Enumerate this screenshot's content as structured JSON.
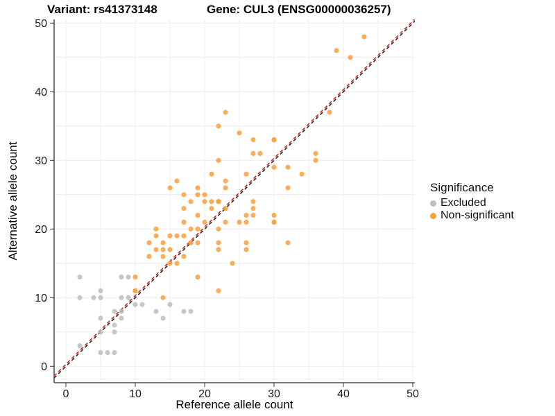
{
  "titles": {
    "variant": "Variant: rs41373148",
    "gene": "Gene: CUL3 (ENSG00000036257)"
  },
  "legend": {
    "title": "Significance",
    "items": [
      {
        "label": "Excluded",
        "color": "#BDBDBD"
      },
      {
        "label": "Non-significant",
        "color": "#F9A03F"
      }
    ]
  },
  "chart_data": {
    "type": "scatter",
    "xlabel": "Reference allele count",
    "ylabel": "Alternative allele count",
    "xlim": [
      -2,
      51
    ],
    "ylim": [
      -2.5,
      51
    ],
    "x_ticks": [
      0,
      10,
      20,
      30,
      40,
      50
    ],
    "y_ticks": [
      0,
      10,
      20,
      30,
      40,
      50
    ],
    "grid_step": 5,
    "grid": true,
    "legend_position": "right",
    "reference_lines": [
      {
        "name": "identity",
        "equation": "y = x",
        "color": "#262626",
        "style": "dashed"
      },
      {
        "name": "expected",
        "equation": "y = x + 0.3",
        "color": "#DC2323",
        "style": "dashed"
      }
    ],
    "series": [
      {
        "name": "Excluded",
        "color": "#BDBDBD",
        "points": [
          [
            2,
            13
          ],
          [
            8,
            13
          ],
          [
            9,
            13
          ],
          [
            5,
            11
          ],
          [
            2,
            10
          ],
          [
            4,
            10
          ],
          [
            5,
            10
          ],
          [
            8,
            10
          ],
          [
            9,
            10
          ],
          [
            10,
            9
          ],
          [
            11,
            9
          ],
          [
            15,
            9
          ],
          [
            7,
            8
          ],
          [
            8,
            8
          ],
          [
            13,
            8
          ],
          [
            17,
            8
          ],
          [
            18,
            8
          ],
          [
            5,
            7
          ],
          [
            8,
            7
          ],
          [
            14,
            7
          ],
          [
            7,
            6
          ],
          [
            5,
            5
          ],
          [
            7,
            5
          ],
          [
            2,
            3
          ],
          [
            5,
            2
          ],
          [
            6,
            2
          ],
          [
            7,
            2
          ]
        ]
      },
      {
        "name": "Non-significant",
        "color": "#F9A03F",
        "points": [
          [
            43,
            48
          ],
          [
            39,
            46
          ],
          [
            41,
            45
          ],
          [
            23,
            37
          ],
          [
            38,
            37
          ],
          [
            22,
            35
          ],
          [
            25,
            34
          ],
          [
            27,
            33
          ],
          [
            30,
            33
          ],
          [
            30,
            33
          ],
          [
            27,
            31
          ],
          [
            28,
            31
          ],
          [
            36,
            31
          ],
          [
            22,
            30
          ],
          [
            36,
            30
          ],
          [
            30,
            29
          ],
          [
            32,
            29
          ],
          [
            21,
            28
          ],
          [
            26,
            28
          ],
          [
            34,
            28
          ],
          [
            16,
            27
          ],
          [
            23,
            27
          ],
          [
            15,
            26
          ],
          [
            19,
            26
          ],
          [
            23,
            26
          ],
          [
            32,
            26
          ],
          [
            17,
            25
          ],
          [
            19,
            25
          ],
          [
            20,
            25
          ],
          [
            18,
            24
          ],
          [
            20,
            24
          ],
          [
            21,
            24
          ],
          [
            22,
            24
          ],
          [
            22,
            24
          ],
          [
            27,
            24
          ],
          [
            17,
            23
          ],
          [
            21,
            23
          ],
          [
            23,
            23
          ],
          [
            27,
            23
          ],
          [
            19,
            22
          ],
          [
            26,
            22
          ],
          [
            27,
            22
          ],
          [
            30,
            22
          ],
          [
            17,
            21
          ],
          [
            20,
            21
          ],
          [
            23,
            21
          ],
          [
            25,
            21
          ],
          [
            26,
            21
          ],
          [
            30,
            21
          ],
          [
            30,
            21
          ],
          [
            13,
            20
          ],
          [
            18,
            20
          ],
          [
            19,
            20
          ],
          [
            22,
            20
          ],
          [
            13,
            19
          ],
          [
            15,
            19
          ],
          [
            16,
            19
          ],
          [
            17,
            19
          ],
          [
            12,
            18
          ],
          [
            14,
            18
          ],
          [
            18,
            18
          ],
          [
            18,
            18
          ],
          [
            19,
            18
          ],
          [
            22,
            18
          ],
          [
            26,
            18
          ],
          [
            32,
            18
          ],
          [
            13,
            17
          ],
          [
            14,
            17
          ],
          [
            15,
            17
          ],
          [
            22,
            17
          ],
          [
            26,
            17
          ],
          [
            12,
            16
          ],
          [
            14,
            16
          ],
          [
            17,
            16
          ],
          [
            15,
            15
          ],
          [
            16,
            15
          ],
          [
            24,
            15
          ],
          [
            10,
            13
          ],
          [
            19,
            13
          ],
          [
            10,
            11
          ],
          [
            10,
            11
          ],
          [
            22,
            11
          ],
          [
            14,
            10
          ]
        ]
      }
    ]
  },
  "style": {
    "grid_color": "#ECECEC",
    "axis_line_color": "#4A4A4A",
    "tick_color": "#333333",
    "tick_label_color": "#1A1A1A",
    "point_radius": 3.6,
    "point_opacity": 0.85
  }
}
